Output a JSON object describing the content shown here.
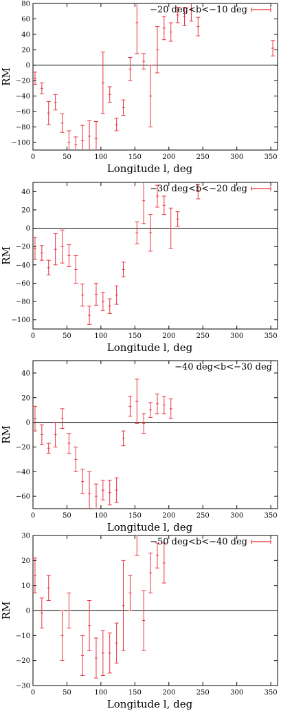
{
  "colors": {
    "errorbar": "#e8323c",
    "axis": "#000000",
    "zero_line": "#000000",
    "background": "#ffffff"
  },
  "chart_data": [
    {
      "type": "scatter",
      "errorbars": true,
      "title": "",
      "legend": "−20 deg<b<−10 deg",
      "legend_position": "top-right",
      "legend_marker": true,
      "xlabel": "Longitude l, deg",
      "ylabel": "RM",
      "xlim": [
        0,
        360
      ],
      "ylim": [
        -110,
        80
      ],
      "xticks": [
        0,
        50,
        100,
        150,
        200,
        250,
        300,
        350
      ],
      "xtick_labels": [
        "0",
        "50",
        "100",
        "150",
        "200",
        "250",
        "300",
        "350"
      ],
      "yticks": [
        -100,
        -80,
        -60,
        -40,
        -20,
        0,
        20,
        40,
        60,
        80
      ],
      "ytick_labels": [
        "−100",
        "−80",
        "−60",
        "−40",
        "−20",
        "0",
        "20",
        "40",
        "60",
        "80"
      ],
      "zero_line": true,
      "grid": false,
      "points": [
        {
          "x": 3,
          "y": -17,
          "err": 8
        },
        {
          "x": 13,
          "y": -30,
          "err": 7
        },
        {
          "x": 23,
          "y": -62,
          "err": 15
        },
        {
          "x": 33,
          "y": -48,
          "err": 10
        },
        {
          "x": 43,
          "y": -75,
          "err": 12
        },
        {
          "x": 53,
          "y": -100,
          "err": 15
        },
        {
          "x": 63,
          "y": -103,
          "err": 10
        },
        {
          "x": 73,
          "y": -98,
          "err": 20
        },
        {
          "x": 83,
          "y": -92,
          "err": 20
        },
        {
          "x": 93,
          "y": -95,
          "err": 22
        },
        {
          "x": 103,
          "y": -23,
          "err": 40
        },
        {
          "x": 113,
          "y": -38,
          "err": 10
        },
        {
          "x": 123,
          "y": -77,
          "err": 8
        },
        {
          "x": 133,
          "y": -55,
          "err": 10
        },
        {
          "x": 143,
          "y": -5,
          "err": 15
        },
        {
          "x": 153,
          "y": 55,
          "err": 40
        },
        {
          "x": 163,
          "y": 5,
          "err": 10
        },
        {
          "x": 173,
          "y": -40,
          "err": 40
        },
        {
          "x": 183,
          "y": 20,
          "err": 30
        },
        {
          "x": 193,
          "y": 48,
          "err": 15
        },
        {
          "x": 203,
          "y": 43,
          "err": 12
        },
        {
          "x": 213,
          "y": 65,
          "err": 10
        },
        {
          "x": 223,
          "y": 63,
          "err": 12
        },
        {
          "x": 233,
          "y": 72,
          "err": 15
        },
        {
          "x": 243,
          "y": 50,
          "err": 12
        },
        {
          "x": 353,
          "y": 22,
          "err": 10
        }
      ]
    },
    {
      "type": "scatter",
      "errorbars": true,
      "title": "",
      "legend": "−30 deg<b<−20 deg",
      "legend_position": "top-right",
      "legend_marker": true,
      "xlabel": "Longitude l, deg",
      "ylabel": "RM",
      "xlim": [
        0,
        360
      ],
      "ylim": [
        -110,
        50
      ],
      "xticks": [
        0,
        50,
        100,
        150,
        200,
        250,
        300,
        350
      ],
      "xtick_labels": [
        "0",
        "50",
        "100",
        "150",
        "200",
        "250",
        "300",
        "350"
      ],
      "yticks": [
        -100,
        -80,
        -60,
        -40,
        -20,
        0,
        20,
        40
      ],
      "ytick_labels": [
        "−100",
        "−80",
        "−60",
        "−40",
        "−20",
        "0",
        "20",
        "40"
      ],
      "zero_line": true,
      "grid": false,
      "points": [
        {
          "x": 3,
          "y": -22,
          "err": 12
        },
        {
          "x": 13,
          "y": -27,
          "err": 8
        },
        {
          "x": 23,
          "y": -43,
          "err": 8
        },
        {
          "x": 33,
          "y": -23,
          "err": 17
        },
        {
          "x": 43,
          "y": -20,
          "err": 18
        },
        {
          "x": 53,
          "y": -30,
          "err": 12
        },
        {
          "x": 63,
          "y": -45,
          "err": 15
        },
        {
          "x": 73,
          "y": -73,
          "err": 12
        },
        {
          "x": 83,
          "y": -95,
          "err": 10
        },
        {
          "x": 93,
          "y": -72,
          "err": 12
        },
        {
          "x": 103,
          "y": -80,
          "err": 10
        },
        {
          "x": 113,
          "y": -85,
          "err": 8
        },
        {
          "x": 123,
          "y": -73,
          "err": 10
        },
        {
          "x": 133,
          "y": -45,
          "err": 8
        },
        {
          "x": 153,
          "y": -5,
          "err": 12
        },
        {
          "x": 163,
          "y": 30,
          "err": 25
        },
        {
          "x": 173,
          "y": -5,
          "err": 20
        },
        {
          "x": 183,
          "y": 35,
          "err": 12
        },
        {
          "x": 193,
          "y": 25,
          "err": 10
        },
        {
          "x": 203,
          "y": 0,
          "err": 22
        },
        {
          "x": 213,
          "y": 10,
          "err": 8
        },
        {
          "x": 243,
          "y": 40,
          "err": 8
        }
      ]
    },
    {
      "type": "scatter",
      "errorbars": true,
      "title": "",
      "legend": "−40 deg<b<−30 deg",
      "legend_position": "top-right",
      "legend_marker": false,
      "xlabel": "Longitude l, deg",
      "ylabel": "RM",
      "xlim": [
        0,
        360
      ],
      "ylim": [
        -70,
        50
      ],
      "xticks": [
        0,
        50,
        100,
        150,
        200,
        250,
        300,
        350
      ],
      "xtick_labels": [
        "0",
        "50",
        "100",
        "150",
        "200",
        "250",
        "300",
        "350"
      ],
      "yticks": [
        -60,
        -40,
        -20,
        0,
        20,
        40
      ],
      "ytick_labels": [
        "−60",
        "−40",
        "−20",
        "0",
        "20",
        "40"
      ],
      "zero_line": true,
      "grid": false,
      "points": [
        {
          "x": 3,
          "y": 3,
          "err": 10
        },
        {
          "x": 13,
          "y": -10,
          "err": 8
        },
        {
          "x": 23,
          "y": -21,
          "err": 4
        },
        {
          "x": 33,
          "y": -10,
          "err": 10
        },
        {
          "x": 43,
          "y": 3,
          "err": 8
        },
        {
          "x": 53,
          "y": -17,
          "err": 8
        },
        {
          "x": 63,
          "y": -30,
          "err": 10
        },
        {
          "x": 73,
          "y": -48,
          "err": 10
        },
        {
          "x": 83,
          "y": -58,
          "err": 18
        },
        {
          "x": 93,
          "y": -60,
          "err": 10
        },
        {
          "x": 103,
          "y": -55,
          "err": 8
        },
        {
          "x": 113,
          "y": -57,
          "err": 10
        },
        {
          "x": 123,
          "y": -55,
          "err": 10
        },
        {
          "x": 133,
          "y": -13,
          "err": 6
        },
        {
          "x": 143,
          "y": 13,
          "err": 8
        },
        {
          "x": 153,
          "y": 17,
          "err": 18
        },
        {
          "x": 163,
          "y": -1,
          "err": 8
        },
        {
          "x": 173,
          "y": 10,
          "err": 6
        },
        {
          "x": 183,
          "y": 15,
          "err": 8
        },
        {
          "x": 193,
          "y": 14,
          "err": 7
        },
        {
          "x": 203,
          "y": 11,
          "err": 8
        }
      ]
    },
    {
      "type": "scatter",
      "errorbars": true,
      "title": "",
      "legend": "−50 deg<b<−40 deg",
      "legend_position": "top-right",
      "legend_marker": true,
      "xlabel": "Longitude l, deg",
      "ylabel": "RM",
      "xlim": [
        0,
        360
      ],
      "ylim": [
        -30,
        30
      ],
      "xticks": [
        0,
        50,
        100,
        150,
        200,
        250,
        300,
        350
      ],
      "xtick_labels": [
        "0",
        "50",
        "100",
        "150",
        "200",
        "250",
        "300",
        "350"
      ],
      "yticks": [
        -30,
        -20,
        -10,
        0,
        10,
        20,
        30
      ],
      "ytick_labels": [
        "−30",
        "−20",
        "−10",
        "0",
        "10",
        "20",
        "30"
      ],
      "zero_line": true,
      "grid": false,
      "points": [
        {
          "x": 3,
          "y": 14,
          "err": 7
        },
        {
          "x": 13,
          "y": -1,
          "err": 6
        },
        {
          "x": 23,
          "y": 9,
          "err": 5
        },
        {
          "x": 43,
          "y": -10,
          "err": 10
        },
        {
          "x": 53,
          "y": 0,
          "err": 7
        },
        {
          "x": 73,
          "y": -18,
          "err": 8
        },
        {
          "x": 83,
          "y": -6,
          "err": 10
        },
        {
          "x": 93,
          "y": -19,
          "err": 8
        },
        {
          "x": 103,
          "y": -17,
          "err": 9
        },
        {
          "x": 113,
          "y": -17,
          "err": 8
        },
        {
          "x": 123,
          "y": -13,
          "err": 8
        },
        {
          "x": 133,
          "y": 2,
          "err": 18
        },
        {
          "x": 143,
          "y": 7,
          "err": 7
        },
        {
          "x": 153,
          "y": 30,
          "err": 8
        },
        {
          "x": 163,
          "y": -4,
          "err": 12
        },
        {
          "x": 173,
          "y": 15,
          "err": 8
        },
        {
          "x": 183,
          "y": 22,
          "err": 5
        },
        {
          "x": 193,
          "y": 19,
          "err": 8
        }
      ]
    }
  ]
}
